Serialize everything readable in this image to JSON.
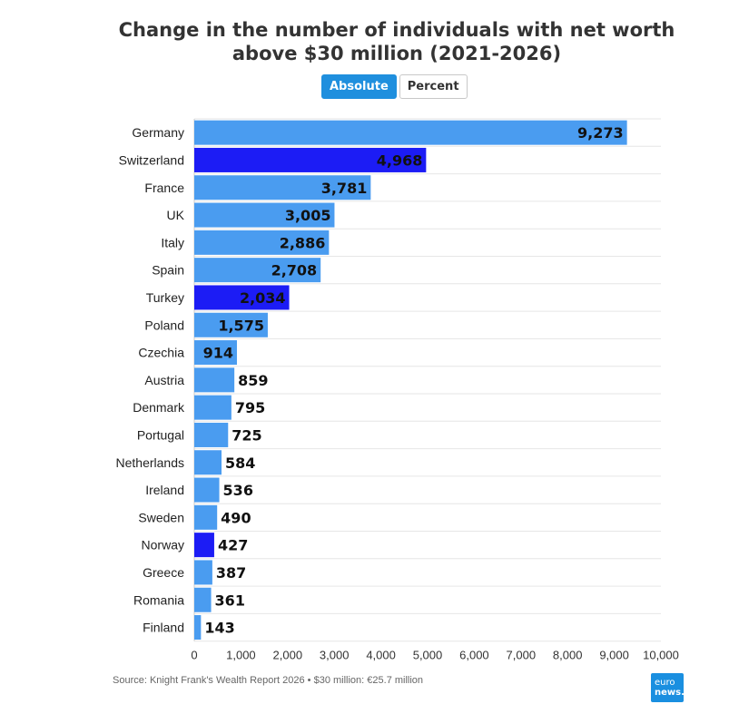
{
  "page": {
    "title_line1": "Change in the number of individuals with net worth",
    "title_line2": "above $30 million (2021-2026)",
    "source": "Source: Knight Frank's Wealth Report 2026 • $30 million: €25.7 million",
    "toggle": {
      "absolute_label": "Absolute",
      "percent_label": "Percent",
      "selected": "Absolute"
    },
    "logo": {
      "line1": "euro",
      "line2": "news."
    }
  },
  "colors": {
    "default_bar": "#4a9cf0",
    "highlight_bar": "#1c1cf5",
    "grid": "#e6e6e6"
  },
  "chart_data": {
    "type": "bar",
    "orientation": "horizontal",
    "title": "Change in the number of individuals with net worth above $30 million (2021-2026)",
    "xlim": [
      0,
      10000
    ],
    "xticks": [
      "0",
      "1,000",
      "2,000",
      "3,000",
      "4,000",
      "5,000",
      "6,000",
      "7,000",
      "8,000",
      "9,000",
      "10,000"
    ],
    "grid": true,
    "categories": [
      "Germany",
      "Switzerland",
      "France",
      "UK",
      "Italy",
      "Spain",
      "Turkey",
      "Poland",
      "Czechia",
      "Austria",
      "Denmark",
      "Portugal",
      "Netherlands",
      "Ireland",
      "Sweden",
      "Norway",
      "Greece",
      "Romania",
      "Finland"
    ],
    "values": [
      9273,
      4968,
      3781,
      3005,
      2886,
      2708,
      2034,
      1575,
      914,
      859,
      795,
      725,
      584,
      536,
      490,
      427,
      387,
      361,
      143
    ],
    "labels": [
      "9,273",
      "4,968",
      "3,781",
      "3,005",
      "2,886",
      "2,708",
      "2,034",
      "1,575",
      "914",
      "859",
      "795",
      "725",
      "584",
      "536",
      "490",
      "427",
      "387",
      "361",
      "143"
    ],
    "highlighted": [
      "Switzerland",
      "Turkey",
      "Norway"
    ]
  }
}
